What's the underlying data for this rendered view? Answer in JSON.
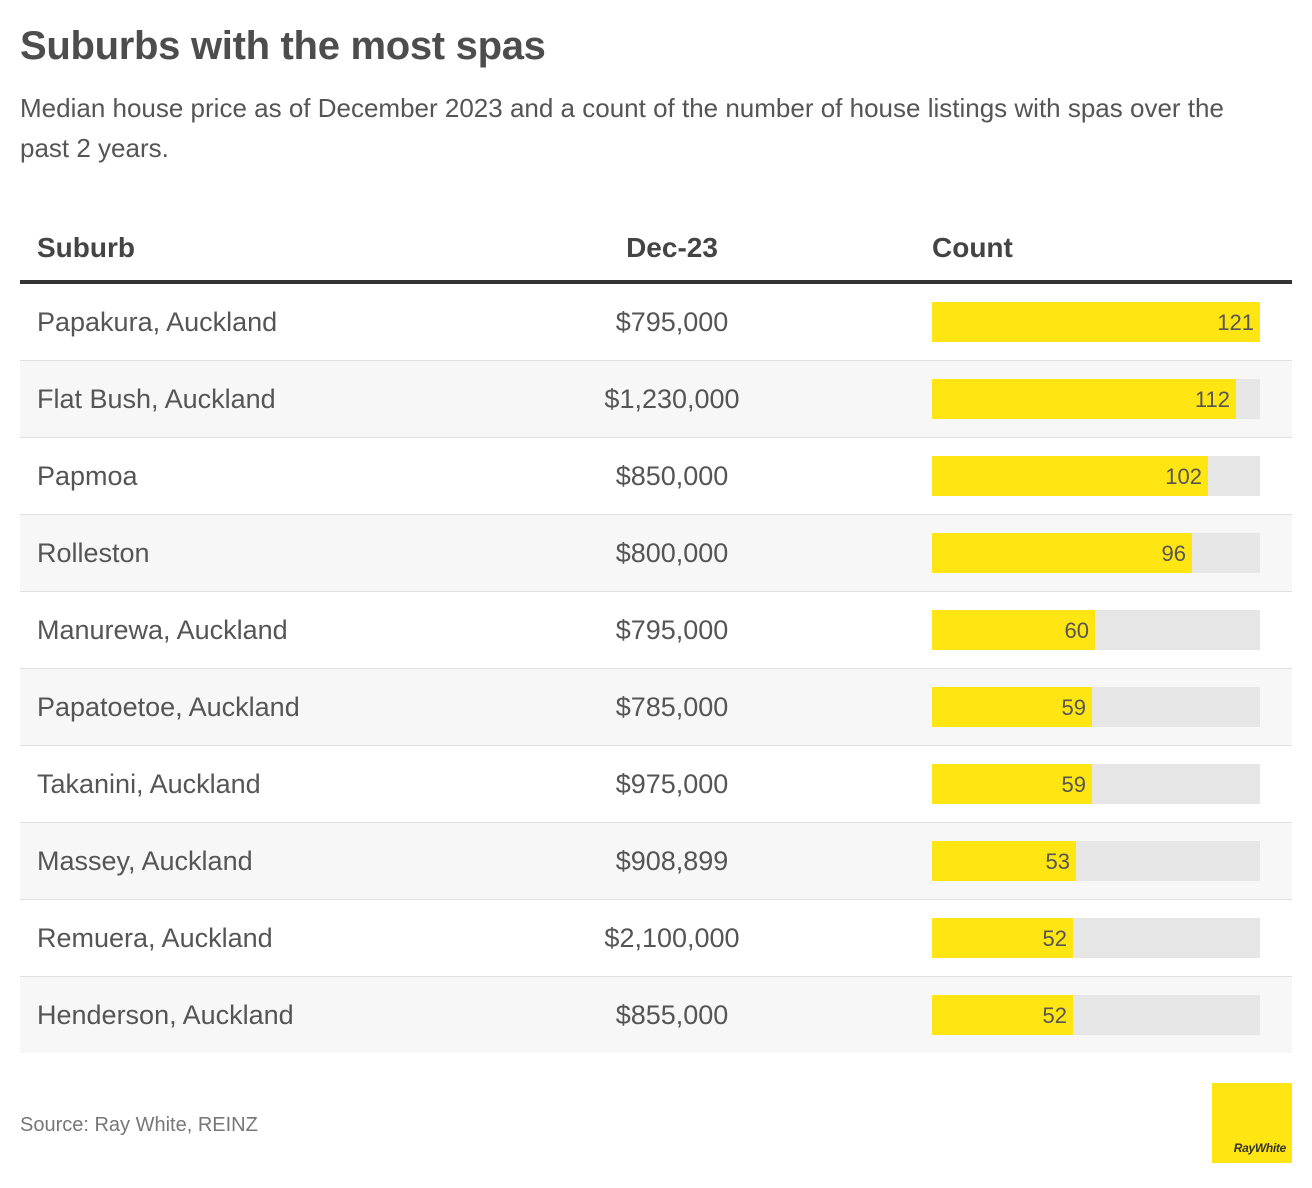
{
  "title": "Suburbs with the most spas",
  "subtitle": "Median house price as of December 2023 and a count of the number of house listings with spas over the past 2 years.",
  "table": {
    "headers": {
      "suburb": "Suburb",
      "price": "Dec-23",
      "count": "Count"
    }
  },
  "chart_data": {
    "type": "table",
    "title": "Suburbs with the most spas",
    "columns": [
      "Suburb",
      "Dec-23",
      "Count"
    ],
    "count_max": 121,
    "rows": [
      {
        "suburb": "Papakura, Auckland",
        "price": "$795,000",
        "count": 121
      },
      {
        "suburb": "Flat Bush, Auckland",
        "price": "$1,230,000",
        "count": 112
      },
      {
        "suburb": "Papmoa",
        "price": "$850,000",
        "count": 102
      },
      {
        "suburb": "Rolleston",
        "price": "$800,000",
        "count": 96
      },
      {
        "suburb": "Manurewa, Auckland",
        "price": "$795,000",
        "count": 60
      },
      {
        "suburb": "Papatoetoe, Auckland",
        "price": "$785,000",
        "count": 59
      },
      {
        "suburb": "Takanini, Auckland",
        "price": "$975,000",
        "count": 59
      },
      {
        "suburb": "Massey, Auckland",
        "price": "$908,899",
        "count": 53
      },
      {
        "suburb": "Remuera, Auckland",
        "price": "$2,100,000",
        "count": 52
      },
      {
        "suburb": "Henderson, Auckland",
        "price": "$855,000",
        "count": 52
      }
    ],
    "bar_color": "#ffe512",
    "track_color": "#e6e6e6"
  },
  "footer": {
    "source": "Source: Ray White, REINZ"
  },
  "logo": {
    "text": "RayWhite",
    "color": "#ffe512"
  }
}
